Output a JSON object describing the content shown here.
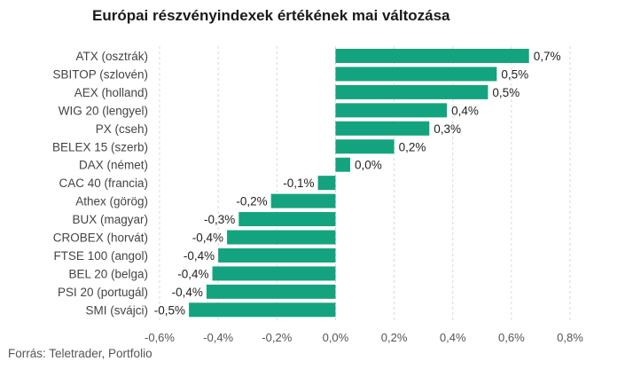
{
  "title": "Európai részvényindexek értékének mai változása",
  "source": "Forrás: Teletrader, Portfolio",
  "colors": {
    "bar": "#14a37f",
    "grid": "#d9d9d9"
  },
  "chart_data": {
    "type": "bar",
    "orientation": "horizontal",
    "title": "Európai részvényindexek értékének mai változása",
    "categories": [
      "ATX (osztrák)",
      "SBITOP (szlovén)",
      "AEX (holland)",
      "WIG 20 (lengyel)",
      "PX (cseh)",
      "BELEX 15 (szerb)",
      "DAX (német)",
      "CAC 40 (francia)",
      "Athex (görög)",
      "BUX (magyar)",
      "CROBEX (horvát)",
      "FTSE 100 (angol)",
      "BEL 20 (belga)",
      "PSI 20 (portugál)",
      "SMI (svájci)"
    ],
    "values": [
      0.66,
      0.55,
      0.52,
      0.38,
      0.32,
      0.2,
      0.05,
      -0.06,
      -0.22,
      -0.33,
      -0.37,
      -0.4,
      -0.42,
      -0.44,
      -0.5
    ],
    "value_labels": [
      "0,7%",
      "0,5%",
      "0,5%",
      "0,4%",
      "0,3%",
      "0,2%",
      "0,0%",
      "-0,1%",
      "-0,2%",
      "-0,3%",
      "-0,4%",
      "-0,4%",
      "-0,4%",
      "-0,4%",
      "-0,5%"
    ],
    "xlim": [
      -0.6,
      0.8
    ],
    "x_ticks": [
      -0.6,
      -0.4,
      -0.2,
      0,
      0.2,
      0.4,
      0.6,
      0.8
    ],
    "x_tick_labels": [
      "-0,6%",
      "-0,4%",
      "-0,2%",
      "0,0%",
      "0,2%",
      "0,4%",
      "0,6%",
      "0,8%"
    ],
    "grid": "vertical",
    "xlabel": "",
    "ylabel": ""
  }
}
